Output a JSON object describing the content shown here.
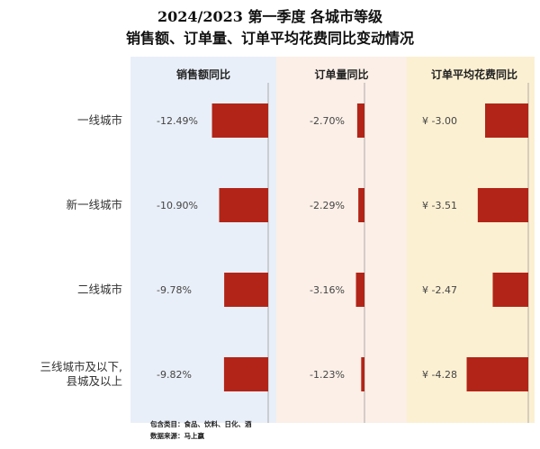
{
  "title": {
    "line1": "2024/2023 第一季度 各城市等级",
    "line2": "销售额、订单量、订单平均花费同比变动情况"
  },
  "footnotes": {
    "line1": "包含类目：食品、饮料、日化、酒",
    "line2": "数据来源：马上赢"
  },
  "colors": {
    "bar": "#B22418",
    "panel1_bg": "#E9EFF8",
    "panel2_bg": "#FBEFE7",
    "panel3_bg": "#FCF0D2",
    "axis": "#9A9A9A"
  },
  "chart_data": {
    "type": "bar",
    "orientation": "horizontal",
    "categories": [
      "一线城市",
      "新一线城市",
      "二线城市",
      "三线城市及以下,\n县城及以上"
    ],
    "panels": [
      {
        "title": "销售额同比",
        "values": [
          -12.49,
          -10.9,
          -9.78,
          -9.82
        ],
        "labels": [
          "-12.49%",
          "-10.90%",
          "-9.78%",
          "-9.82%"
        ],
        "unit": "%"
      },
      {
        "title": "订单量同比",
        "values": [
          -2.7,
          -2.29,
          -3.16,
          -1.23
        ],
        "labels": [
          "-2.70%",
          "-2.29%",
          "-3.16%",
          "-1.23%"
        ],
        "unit": "%"
      },
      {
        "title": "订单平均花费同比",
        "values": [
          -3.0,
          -3.51,
          -2.47,
          -4.28
        ],
        "labels": [
          "¥ -3.00",
          "¥ -3.51",
          "¥ -2.47",
          "¥ -4.28"
        ],
        "unit": "¥"
      }
    ]
  }
}
